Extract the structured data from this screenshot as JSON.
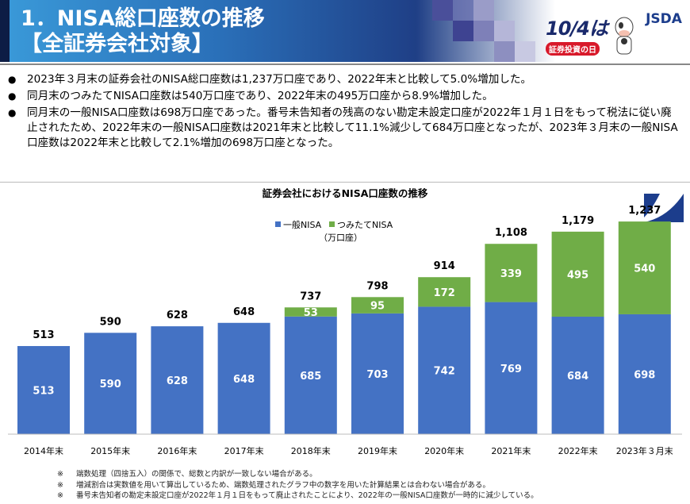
{
  "header": {
    "title_line1": "1．NISA総口座数の推移",
    "title_line2": "【全証券会社対象】",
    "logo_event": {
      "date": "10/4は",
      "label": "証券投資の日"
    },
    "logo_org": "JSDA"
  },
  "bullets": [
    "2023年３月末の証券会社のNISA総口座数は1,237万口座であり、2022年末と比較して5.0%増加した。",
    "同月末のつみたてNISA口座数は540万口座であり、2022年末の495万口座から8.9%増加した。",
    "同月末の一般NISA口座数は698万口座であった。番号未告知者の残高のない勘定未設定口座が2022年１月１日をもって税法に従い廃止されたため、2022年末の一般NISA口座数は2021年末と比較して11.1%減少して684万口座となったが、2023年３月末の一般NISA口座数は2022年末と比較して2.1%増加の698万口座となった。"
  ],
  "chart_data": {
    "type": "bar",
    "stacked": true,
    "title": "証券会社におけるNISA口座数の推移",
    "unit": "（万口座）",
    "categories": [
      "2014年末",
      "2015年末",
      "2016年末",
      "2017年末",
      "2018年末",
      "2019年末",
      "2020年末",
      "2021年末",
      "2022年末",
      "2023年３月末"
    ],
    "series": [
      {
        "name": "一般NISA",
        "color": "#4472c4",
        "values": [
          513,
          590,
          628,
          648,
          685,
          703,
          742,
          769,
          684,
          698
        ]
      },
      {
        "name": "つみたてNISA",
        "color": "#70ad47",
        "values": [
          0,
          0,
          0,
          0,
          53,
          95,
          172,
          339,
          495,
          540
        ]
      }
    ],
    "totals": [
      "513",
      "590",
      "628",
      "648",
      "737",
      "798",
      "914",
      "1,108",
      "1,179",
      "1,237"
    ],
    "ylim": [
      0,
      1300
    ],
    "grid": false,
    "legend": "top-left"
  },
  "notes": [
    {
      "mark": "※",
      "text": "端数処理（四捨五入）の関係で、総数と内訳が一致しない場合がある。"
    },
    {
      "mark": "※",
      "text": "増減割合は実数値を用いて算出しているため、端数処理されたグラフ中の数字を用いた計算結果とは合わない場合がある。"
    },
    {
      "mark": "※",
      "text": "番号未告知者の勘定未設定口座が2022年１月１日をもって廃止されたことにより、2022年の一般NISA口座数が一時的に減少している。"
    }
  ]
}
